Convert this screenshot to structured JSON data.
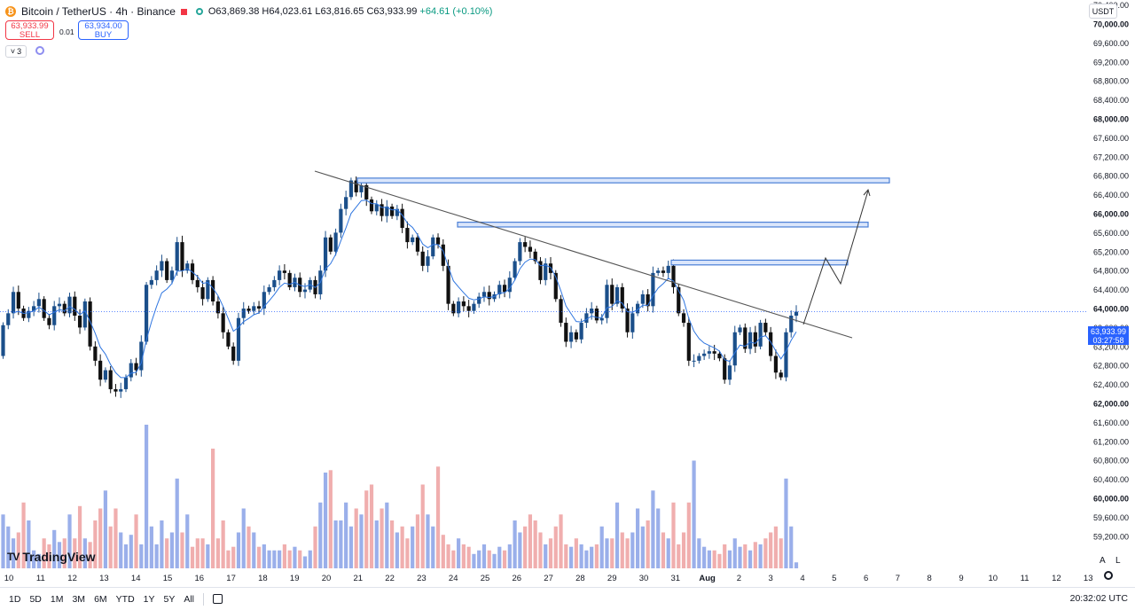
{
  "header": {
    "symbol_title": "Bitcoin / TetherUS · 4h · Binance",
    "ohlc": "O63,869.38 H64,023.61 L63,816.65 C63,933.99",
    "change": "+64.61 (+0.10%)"
  },
  "trade": {
    "sell_price": "63,933.99",
    "sell_label": "SELL",
    "spread": "0.01",
    "buy_price": "63,934.00",
    "buy_label": "BUY"
  },
  "indicators_count": "3",
  "currency": "USDT",
  "current_price": "63,933.99",
  "countdown": "03:27:58",
  "timeframes": [
    "1D",
    "5D",
    "1M",
    "3M",
    "6M",
    "YTD",
    "1Y",
    "5Y",
    "All"
  ],
  "clock": "20:32:02 UTC",
  "scale_buttons": {
    "auto": "A",
    "log": "L"
  },
  "logo_text": "TradingView",
  "logo_mark": "TV",
  "colors": {
    "up": "#1b4f8a",
    "down": "#111111",
    "vol_up": "#8fa6e8",
    "vol_down": "#eea5a5",
    "ma": "#2f76e0",
    "zone": "#4a7fd6",
    "trend": "#555555"
  },
  "chart_data": {
    "type": "candlestick",
    "price_axis_ticks": [
      "70,400.00",
      "70,000.00",
      "69,600.00",
      "69,200.00",
      "68,800.00",
      "68,400.00",
      "68,000.00",
      "67,600.00",
      "67,200.00",
      "66,800.00",
      "66,400.00",
      "66,000.00",
      "65,600.00",
      "65,200.00",
      "64,800.00",
      "64,400.00",
      "64,000.00",
      "63,600.00",
      "63,200.00",
      "62,800.00",
      "62,400.00",
      "62,000.00",
      "61,600.00",
      "61,200.00",
      "60,800.00",
      "60,400.00",
      "60,000.00",
      "59,600.00",
      "59,200.00"
    ],
    "bold_ticks": [
      "70,000.00",
      "68,000.00",
      "66,000.00",
      "64,000.00",
      "62,000.00",
      "60,000.00"
    ],
    "ylim": [
      59000,
      70600
    ],
    "time_axis_labels": [
      "10",
      "11",
      "12",
      "13",
      "14",
      "15",
      "16",
      "17",
      "18",
      "19",
      "20",
      "21",
      "22",
      "23",
      "24",
      "25",
      "26",
      "27",
      "28",
      "29",
      "30",
      "31",
      "Aug",
      "2",
      "3",
      "4",
      "5",
      "6",
      "7",
      "8",
      "9",
      "10",
      "11",
      "12",
      "13"
    ],
    "candles": [
      [
        63000,
        63650
      ],
      [
        63650,
        63900
      ],
      [
        63900,
        64350
      ],
      [
        64350,
        64000
      ],
      [
        64000,
        63800
      ],
      [
        63800,
        63950
      ],
      [
        63950,
        64050
      ],
      [
        64050,
        64200
      ],
      [
        64200,
        63800
      ],
      [
        63800,
        63650
      ],
      [
        63650,
        64050
      ],
      [
        64050,
        64100
      ],
      [
        64100,
        63900
      ],
      [
        63900,
        64250
      ],
      [
        64250,
        63850
      ],
      [
        63850,
        63600
      ],
      [
        63600,
        64150
      ],
      [
        64150,
        63200
      ],
      [
        63200,
        62900
      ],
      [
        62900,
        62500
      ],
      [
        62500,
        62700
      ],
      [
        62700,
        62300
      ],
      [
        62300,
        62250
      ],
      [
        62250,
        62300
      ],
      [
        62300,
        62550
      ],
      [
        62550,
        62850
      ],
      [
        62850,
        62700
      ],
      [
        62700,
        63300
      ],
      [
        63300,
        64500
      ],
      [
        64500,
        64600
      ],
      [
        64600,
        64800
      ],
      [
        64800,
        65000
      ],
      [
        65000,
        64600
      ],
      [
        64600,
        64800
      ],
      [
        64800,
        65400
      ],
      [
        65400,
        64800
      ],
      [
        64800,
        64950
      ],
      [
        64950,
        64600
      ],
      [
        64600,
        64450
      ],
      [
        64450,
        64200
      ],
      [
        64200,
        64600
      ],
      [
        64600,
        64150
      ],
      [
        64150,
        63900
      ],
      [
        63900,
        63500
      ],
      [
        63500,
        63200
      ],
      [
        63200,
        62900
      ],
      [
        62900,
        63800
      ],
      [
        63800,
        64000
      ],
      [
        64000,
        63950
      ],
      [
        63950,
        64050
      ],
      [
        64050,
        64000
      ],
      [
        64000,
        64350
      ],
      [
        64350,
        64450
      ],
      [
        64450,
        64600
      ],
      [
        64600,
        64800
      ],
      [
        64800,
        64750
      ],
      [
        64750,
        64450
      ],
      [
        64450,
        64650
      ],
      [
        64650,
        64350
      ],
      [
        64350,
        64400
      ],
      [
        64400,
        64600
      ],
      [
        64600,
        64300
      ],
      [
        64300,
        64800
      ],
      [
        64800,
        65500
      ],
      [
        65500,
        65200
      ],
      [
        65200,
        65600
      ],
      [
        65600,
        66100
      ],
      [
        66100,
        66350
      ],
      [
        66350,
        66700
      ],
      [
        66700,
        66450
      ],
      [
        66450,
        66600
      ],
      [
        66600,
        66300
      ],
      [
        66300,
        66050
      ],
      [
        66050,
        66200
      ],
      [
        66200,
        65950
      ],
      [
        65950,
        66150
      ],
      [
        66150,
        65950
      ],
      [
        65950,
        66100
      ],
      [
        66100,
        65700
      ],
      [
        65700,
        65400
      ],
      [
        65400,
        65500
      ],
      [
        65500,
        65200
      ],
      [
        65200,
        64900
      ],
      [
        64900,
        65100
      ],
      [
        65100,
        65500
      ],
      [
        65500,
        65350
      ],
      [
        65350,
        64900
      ],
      [
        64900,
        64100
      ],
      [
        64100,
        63900
      ],
      [
        63900,
        64150
      ],
      [
        64150,
        64050
      ],
      [
        64050,
        63950
      ],
      [
        63950,
        64100
      ],
      [
        64100,
        64250
      ],
      [
        64250,
        64350
      ],
      [
        64350,
        64200
      ],
      [
        64200,
        64300
      ],
      [
        64300,
        64500
      ],
      [
        64500,
        64350
      ],
      [
        64350,
        64650
      ],
      [
        64650,
        65000
      ],
      [
        65000,
        65400
      ],
      [
        65400,
        65300
      ],
      [
        65300,
        65200
      ],
      [
        65200,
        65000
      ],
      [
        65000,
        64600
      ],
      [
        64600,
        64950
      ],
      [
        64950,
        64750
      ],
      [
        64750,
        64200
      ],
      [
        64200,
        63700
      ],
      [
        63700,
        63300
      ],
      [
        63300,
        63500
      ],
      [
        63500,
        63350
      ],
      [
        63350,
        63700
      ],
      [
        63700,
        63900
      ],
      [
        63900,
        64000
      ],
      [
        64000,
        63750
      ],
      [
        63750,
        63800
      ],
      [
        63800,
        64500
      ],
      [
        64500,
        64100
      ],
      [
        64100,
        64450
      ],
      [
        64450,
        64000
      ],
      [
        64000,
        63500
      ],
      [
        63500,
        63900
      ],
      [
        63900,
        64100
      ],
      [
        64100,
        64300
      ],
      [
        64300,
        64050
      ],
      [
        64050,
        64750
      ],
      [
        64750,
        64800
      ],
      [
        64800,
        64750
      ],
      [
        64750,
        64900
      ],
      [
        64900,
        64450
      ],
      [
        64450,
        63900
      ],
      [
        63900,
        63700
      ],
      [
        63700,
        62900
      ],
      [
        62900,
        62900
      ],
      [
        62900,
        63000
      ],
      [
        63000,
        63050
      ],
      [
        63050,
        63100
      ],
      [
        63100,
        63050
      ],
      [
        63050,
        62950
      ],
      [
        62950,
        62500
      ],
      [
        62500,
        62800
      ],
      [
        62800,
        63500
      ],
      [
        63500,
        63600
      ],
      [
        63600,
        63150
      ],
      [
        63150,
        63500
      ],
      [
        63500,
        63200
      ],
      [
        63200,
        63700
      ],
      [
        63700,
        63500
      ],
      [
        63500,
        63000
      ],
      [
        63000,
        62650
      ],
      [
        62650,
        62550
      ],
      [
        62550,
        63500
      ],
      [
        63500,
        63850
      ],
      [
        63850,
        63934
      ]
    ],
    "volumes": [
      4.5,
      3.5,
      2.5,
      3.0,
      5.5,
      4.0,
      1.5,
      1.2,
      2.5,
      2.0,
      3.2,
      2.2,
      2.5,
      4.5,
      2.5,
      5.2,
      2.5,
      2.2,
      4.0,
      5.0,
      6.5,
      3.5,
      5.0,
      3.0,
      2.0,
      2.8,
      4.5,
      2.0,
      12.0,
      3.5,
      2.0,
      4.0,
      2.5,
      3.0,
      7.5,
      3.0,
      4.5,
      1.8,
      2.5,
      2.5,
      2.0,
      10.0,
      2.5,
      4.0,
      1.5,
      1.8,
      3.0,
      5.0,
      3.5,
      3.0,
      1.8,
      2.0,
      1.5,
      1.5,
      1.5,
      2.0,
      1.5,
      1.8,
      1.5,
      1.0,
      1.5,
      3.5,
      5.5,
      8.0,
      8.2,
      4.0,
      4.0,
      5.5,
      3.5,
      5.0,
      4.5,
      6.5,
      7.0,
      4.0,
      5.0,
      5.5,
      4.0,
      3.0,
      3.5,
      2.5,
      3.5,
      4.5,
      7.0,
      4.5,
      3.5,
      8.5,
      2.8,
      2.0,
      1.5,
      2.5,
      2.0,
      1.8,
      1.2,
      1.5,
      2.0,
      1.5,
      1.2,
      1.8,
      1.5,
      2.0,
      4.0,
      3.0,
      3.5,
      4.5,
      4.0,
      3.0,
      2.0,
      2.5,
      3.5,
      4.5,
      2.0,
      1.8,
      2.5,
      2.0,
      1.5,
      1.8,
      2.0,
      3.5,
      2.5,
      2.5,
      5.5,
      3.0,
      2.5,
      3.0,
      5.0,
      3.5,
      4.0,
      6.5,
      5.0,
      3.0,
      2.5,
      5.5,
      2.0,
      3.0,
      5.5,
      9.0,
      2.5,
      1.8,
      1.5,
      1.5,
      1.2,
      2.0,
      1.5,
      2.5,
      1.8,
      2.0,
      1.5,
      2.2,
      2.0,
      2.5,
      3.0,
      3.5,
      2.5,
      7.5,
      3.5,
      0.5
    ]
  }
}
